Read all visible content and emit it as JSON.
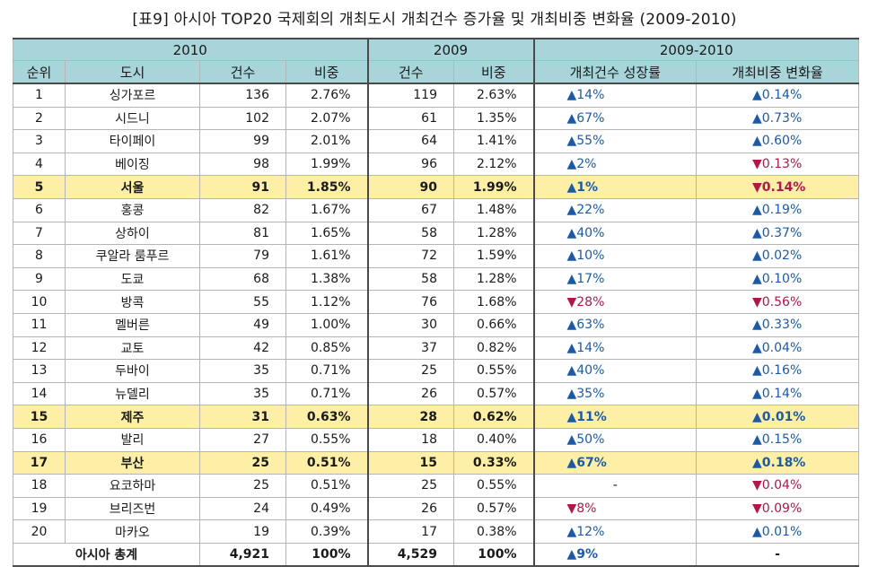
{
  "title": "[표9] 아시아 TOP20 국제회의 개최도시 개최건수 증가율 및 개최비중 변화율 (2009-2010)",
  "header": {
    "group_2010": "2010",
    "group_2009": "2009",
    "group_change": "2009-2010",
    "rank": "순위",
    "city": "도시",
    "count_2010": "건수",
    "share_2010": "비중",
    "count_2009": "건수",
    "share_2009": "비중",
    "growth": "개최건수 성장률",
    "share_change": "개최비중 변화율"
  },
  "colors": {
    "header_bg": "#a7d5d9",
    "highlight_bg": "#fdf0a6",
    "up": "#1d5aa6",
    "down": "#b0174a"
  },
  "rows": [
    {
      "rank": "1",
      "city": "싱가포르",
      "c2010": "136",
      "s2010": "2.76%",
      "c2009": "119",
      "s2009": "2.63%",
      "growth": "▲14%",
      "growth_dir": "up",
      "share": "▲0.14%",
      "share_dir": "up"
    },
    {
      "rank": "2",
      "city": "시드니",
      "c2010": "102",
      "s2010": "2.07%",
      "c2009": "61",
      "s2009": "1.35%",
      "growth": "▲67%",
      "growth_dir": "up",
      "share": "▲0.73%",
      "share_dir": "up"
    },
    {
      "rank": "3",
      "city": "타이페이",
      "c2010": "99",
      "s2010": "2.01%",
      "c2009": "64",
      "s2009": "1.41%",
      "growth": "▲55%",
      "growth_dir": "up",
      "share": "▲0.60%",
      "share_dir": "up"
    },
    {
      "rank": "4",
      "city": "베이징",
      "c2010": "98",
      "s2010": "1.99%",
      "c2009": "96",
      "s2009": "2.12%",
      "growth": "▲2%",
      "growth_dir": "up",
      "share": "▼0.13%",
      "share_dir": "down"
    },
    {
      "rank": "5",
      "city": "서울",
      "c2010": "91",
      "s2010": "1.85%",
      "c2009": "90",
      "s2009": "1.99%",
      "growth": "▲1%",
      "growth_dir": "up",
      "share": "▼0.14%",
      "share_dir": "down",
      "highlight": true
    },
    {
      "rank": "6",
      "city": "홍콩",
      "c2010": "82",
      "s2010": "1.67%",
      "c2009": "67",
      "s2009": "1.48%",
      "growth": "▲22%",
      "growth_dir": "up",
      "share": "▲0.19%",
      "share_dir": "up"
    },
    {
      "rank": "7",
      "city": "상하이",
      "c2010": "81",
      "s2010": "1.65%",
      "c2009": "58",
      "s2009": "1.28%",
      "growth": "▲40%",
      "growth_dir": "up",
      "share": "▲0.37%",
      "share_dir": "up"
    },
    {
      "rank": "8",
      "city": "쿠알라 룸푸르",
      "c2010": "79",
      "s2010": "1.61%",
      "c2009": "72",
      "s2009": "1.59%",
      "growth": "▲10%",
      "growth_dir": "up",
      "share": "▲0.02%",
      "share_dir": "up"
    },
    {
      "rank": "9",
      "city": "도쿄",
      "c2010": "68",
      "s2010": "1.38%",
      "c2009": "58",
      "s2009": "1.28%",
      "growth": "▲17%",
      "growth_dir": "up",
      "share": "▲0.10%",
      "share_dir": "up"
    },
    {
      "rank": "10",
      "city": "방콕",
      "c2010": "55",
      "s2010": "1.12%",
      "c2009": "76",
      "s2009": "1.68%",
      "growth": "▼28%",
      "growth_dir": "down",
      "share": "▼0.56%",
      "share_dir": "down"
    },
    {
      "rank": "11",
      "city": "멜버른",
      "c2010": "49",
      "s2010": "1.00%",
      "c2009": "30",
      "s2009": "0.66%",
      "growth": "▲63%",
      "growth_dir": "up",
      "share": "▲0.33%",
      "share_dir": "up"
    },
    {
      "rank": "12",
      "city": "교토",
      "c2010": "42",
      "s2010": "0.85%",
      "c2009": "37",
      "s2009": "0.82%",
      "growth": "▲14%",
      "growth_dir": "up",
      "share": "▲0.04%",
      "share_dir": "up"
    },
    {
      "rank": "13",
      "city": "두바이",
      "c2010": "35",
      "s2010": "0.71%",
      "c2009": "25",
      "s2009": "0.55%",
      "growth": "▲40%",
      "growth_dir": "up",
      "share": "▲0.16%",
      "share_dir": "up"
    },
    {
      "rank": "14",
      "city": "뉴델리",
      "c2010": "35",
      "s2010": "0.71%",
      "c2009": "26",
      "s2009": "0.57%",
      "growth": "▲35%",
      "growth_dir": "up",
      "share": "▲0.14%",
      "share_dir": "up"
    },
    {
      "rank": "15",
      "city": "제주",
      "c2010": "31",
      "s2010": "0.63%",
      "c2009": "28",
      "s2009": "0.62%",
      "growth": "▲11%",
      "growth_dir": "up",
      "share": "▲0.01%",
      "share_dir": "up",
      "highlight": true
    },
    {
      "rank": "16",
      "city": "발리",
      "c2010": "27",
      "s2010": "0.55%",
      "c2009": "18",
      "s2009": "0.40%",
      "growth": "▲50%",
      "growth_dir": "up",
      "share": "▲0.15%",
      "share_dir": "up"
    },
    {
      "rank": "17",
      "city": "부산",
      "c2010": "25",
      "s2010": "0.51%",
      "c2009": "15",
      "s2009": "0.33%",
      "growth": "▲67%",
      "growth_dir": "up",
      "share": "▲0.18%",
      "share_dir": "up",
      "highlight": true
    },
    {
      "rank": "18",
      "city": "요코하마",
      "c2010": "25",
      "s2010": "0.51%",
      "c2009": "25",
      "s2009": "0.55%",
      "growth": "-",
      "growth_dir": "none",
      "share": "▼0.04%",
      "share_dir": "down"
    },
    {
      "rank": "19",
      "city": "브리즈번",
      "c2010": "24",
      "s2010": "0.49%",
      "c2009": "26",
      "s2009": "0.57%",
      "growth": "▼8%",
      "growth_dir": "down",
      "share": "▼0.09%",
      "share_dir": "down"
    },
    {
      "rank": "20",
      "city": "마카오",
      "c2010": "19",
      "s2010": "0.39%",
      "c2009": "17",
      "s2009": "0.38%",
      "growth": "▲12%",
      "growth_dir": "up",
      "share": "▲0.01%",
      "share_dir": "up"
    }
  ],
  "total": {
    "label": "아시아 총계",
    "c2010": "4,921",
    "s2010": "100%",
    "c2009": "4,529",
    "s2009": "100%",
    "growth": "▲9%",
    "share": "-"
  }
}
